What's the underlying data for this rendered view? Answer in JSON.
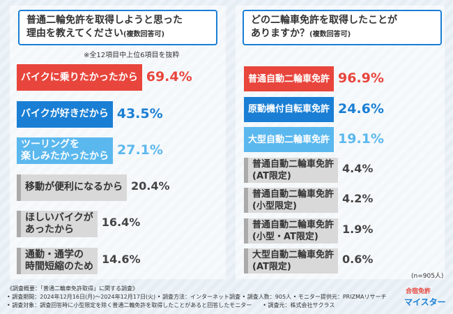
{
  "chart_data": [
    {
      "type": "bar",
      "title": "普通二輪免許を取得しようと思った\n理由を教えてください",
      "title_note": "(複数回答可)",
      "subtitle": "※全12項目中上位6項目を抜粋",
      "categories": [
        "バイクに乗りたかったから",
        "バイクが好きだから",
        "ツーリングを\n楽しみたかったから",
        "移動が便利になるから",
        "ほしいバイクが\nあったから",
        "通勤・通学の\n時間短縮のため"
      ],
      "values": [
        69.4,
        43.5,
        27.1,
        20.4,
        16.4,
        14.6
      ],
      "value_labels": [
        "69.4%",
        "43.5%",
        "27.1%",
        "20.4%",
        "16.4%",
        "14.6%"
      ],
      "colors": [
        "#e8453c",
        "#1a7fd4",
        "#5bb8ee",
        "#d9d9d9",
        "#d9d9d9",
        "#d9d9d9"
      ]
    },
    {
      "type": "bar",
      "title": "どの二輪車免許を取得したことが\nありますか？",
      "title_note": "(複数回答可)",
      "annotation": "(n=905人)",
      "categories": [
        "普通自動二輪車免許",
        "原動機付自転車免許",
        "大型自動二輪車免許",
        "普通自動二輪車免許\n(AT限定)",
        "普通自動二輪車免許\n(小型限定)",
        "普通自動二輪車免許\n(小型・AT限定)",
        "大型自動二輪車免許\n(AT限定)"
      ],
      "values": [
        96.9,
        24.6,
        19.1,
        4.4,
        4.2,
        1.9,
        0.6
      ],
      "value_labels": [
        "96.9%",
        "24.6%",
        "19.1%",
        "4.4%",
        "4.2%",
        "1.9%",
        "0.6%"
      ],
      "colors": [
        "#e8453c",
        "#1a7fd4",
        "#5bb8ee",
        "#d9d9d9",
        "#d9d9d9",
        "#d9d9d9",
        "#d9d9d9"
      ]
    }
  ],
  "footer": {
    "lines": [
      "《調査概要：「普通二輪車免許取得」に関する調査》",
      "• 調査期間：2024年12月16日(月)〜2024年12月17日(火) • 調査方法：インターネット調査 • 調査人数：905人 • モニター提供元：PRIZMAリサーチ",
      "• 調査対象：調査回答時に小型限定を除く普通二輪免許を取得したことがあると回答したモニター　　• 調査元：株式会社サクラス"
    ]
  },
  "logo": {
    "line1": "合宿免許",
    "line2": "マイスター"
  }
}
